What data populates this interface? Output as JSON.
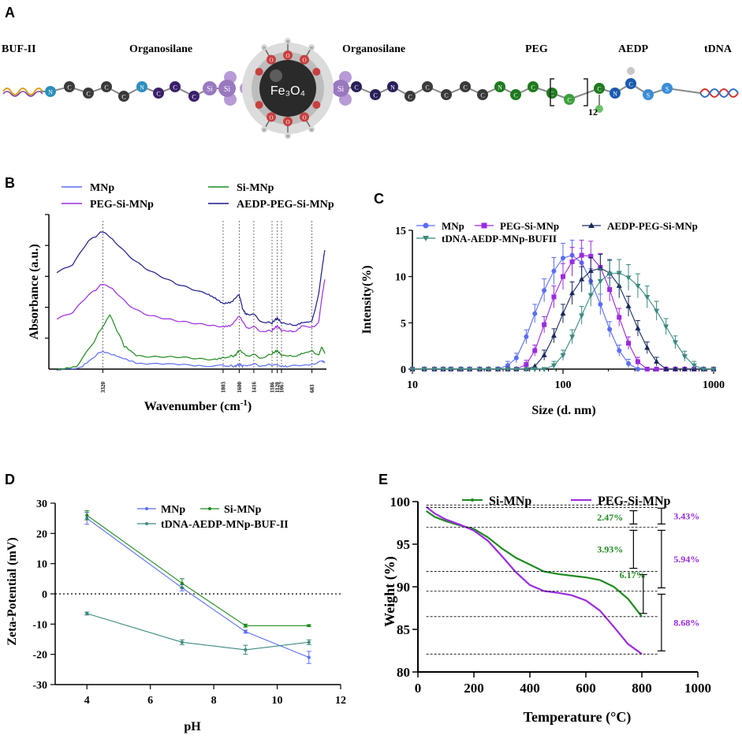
{
  "panel_labels": [
    "A",
    "B",
    "C",
    "D",
    "E"
  ],
  "schematic": {
    "labels": [
      "BUF-II",
      "Organosilane",
      "Organosilane",
      "PEG",
      "AEDP",
      "tDNA"
    ],
    "label_colors": [
      "#f28c28",
      "#8a5db8",
      "#8a5db8",
      "#5bb54a",
      "#3a8ed8",
      "#d83030"
    ],
    "core_label": "Fe₃O₄",
    "peg_repeat": "12",
    "left_chain": [
      "N",
      "C",
      "C",
      "C",
      "C",
      "N",
      "C",
      "C",
      "C",
      "Si"
    ],
    "right_chain": [
      "Si",
      "C",
      "C",
      "C",
      "N",
      "C",
      "C",
      "C",
      "C",
      "N",
      "C",
      "C",
      "C",
      "C",
      "N",
      "C",
      "S",
      "S"
    ],
    "core_oxygen": "O",
    "core_hydrogen": "H"
  },
  "chart_data": [
    {
      "id": "B",
      "type": "line",
      "title": "",
      "xlabel": "Wavenumber (cm-1)",
      "ylabel": "Absorbance (a.u.)",
      "x_reversed": true,
      "xlim": [
        4000,
        500
      ],
      "ylim": [
        0,
        1
      ],
      "marked_wavenumbers": [
        "3320",
        "1803",
        "1600",
        "1416",
        "1186",
        "1120",
        "1067",
        "683"
      ],
      "marked_values": [
        3320,
        1803,
        1600,
        1416,
        1186,
        1120,
        1067,
        683
      ],
      "legend": [
        "MNp",
        "Si-MNp",
        "PEG-Si-MNp",
        "AEDP-PEG-Si-MNp"
      ],
      "series": [
        {
          "name": "MNp",
          "color": "#5b6ef5",
          "x": [
            3900,
            3600,
            3450,
            3320,
            3150,
            2900,
            2500,
            2100,
            1803,
            1650,
            1600,
            1550,
            1416,
            1300,
            1186,
            1100,
            1000,
            800,
            683,
            560,
            520
          ],
          "y": [
            0.0,
            0.01,
            0.07,
            0.12,
            0.08,
            0.04,
            0.03,
            0.025,
            0.02,
            0.02,
            0.03,
            0.02,
            0.03,
            0.02,
            0.03,
            0.025,
            0.02,
            0.025,
            0.03,
            0.05,
            0.04
          ]
        },
        {
          "name": "Si-MNp",
          "color": "#1f8a1f",
          "x": [
            3900,
            3650,
            3450,
            3320,
            3230,
            3050,
            2900,
            2700,
            2500,
            2300,
            2100,
            1900,
            1803,
            1650,
            1600,
            1500,
            1416,
            1300,
            1186,
            1120,
            1067,
            900,
            800,
            683,
            600,
            560,
            520
          ],
          "y": [
            0.0,
            0.02,
            0.16,
            0.28,
            0.35,
            0.15,
            0.09,
            0.08,
            0.075,
            0.075,
            0.07,
            0.065,
            0.07,
            0.09,
            0.12,
            0.08,
            0.09,
            0.07,
            0.1,
            0.12,
            0.09,
            0.08,
            0.1,
            0.12,
            0.09,
            0.14,
            0.1
          ]
        },
        {
          "name": "PEG-Si-MNp",
          "color": "#9b2be0",
          "x": [
            3900,
            3700,
            3500,
            3320,
            3200,
            3000,
            2800,
            2600,
            2400,
            2200,
            2000,
            1803,
            1700,
            1600,
            1500,
            1416,
            1300,
            1186,
            1120,
            1067,
            900,
            800,
            683,
            600,
            560,
            520
          ],
          "y": [
            0.33,
            0.37,
            0.48,
            0.55,
            0.52,
            0.42,
            0.36,
            0.33,
            0.31,
            0.3,
            0.29,
            0.27,
            0.28,
            0.34,
            0.26,
            0.27,
            0.24,
            0.25,
            0.28,
            0.25,
            0.24,
            0.28,
            0.27,
            0.3,
            0.45,
            0.58
          ]
        },
        {
          "name": "AEDP-PEG-Si-MNp",
          "color": "#1a1a8c",
          "x": [
            3900,
            3700,
            3500,
            3320,
            3200,
            3000,
            2800,
            2600,
            2400,
            2200,
            2000,
            1900,
            1803,
            1700,
            1600,
            1550,
            1500,
            1416,
            1300,
            1186,
            1120,
            1067,
            900,
            800,
            683,
            600,
            560,
            520
          ],
          "y": [
            0.63,
            0.68,
            0.83,
            0.89,
            0.84,
            0.74,
            0.66,
            0.6,
            0.55,
            0.52,
            0.49,
            0.46,
            0.42,
            0.43,
            0.48,
            0.38,
            0.35,
            0.35,
            0.3,
            0.3,
            0.33,
            0.3,
            0.28,
            0.3,
            0.31,
            0.48,
            0.63,
            0.77
          ]
        }
      ]
    },
    {
      "id": "C",
      "type": "line",
      "title": "",
      "xlabel": "Size (d. nm)",
      "ylabel": "Intensity(%)",
      "xscale": "log",
      "xlim": [
        10,
        1000
      ],
      "ylim": [
        0,
        15
      ],
      "xticks": [
        10,
        100,
        1000
      ],
      "yticks": [
        0,
        5,
        10,
        15
      ],
      "xtick_labels": [
        "10",
        "100",
        "1000"
      ],
      "ytick_labels": [
        "0",
        "5",
        "10",
        "15"
      ],
      "legend": [
        "MNp",
        "PEG-Si-MNp",
        "AEDP-PEG-Si-MNp",
        "tDNA-AEDP-MNp-BUFII"
      ],
      "series": [
        {
          "name": "MNp",
          "color": "#5b6ef5",
          "marker": "circle",
          "x": [
            10,
            12,
            14,
            16,
            18,
            21,
            24,
            28,
            32,
            37,
            43,
            49,
            57,
            65,
            75,
            87,
            100,
            115,
            133,
            153,
            177,
            204,
            236,
            272,
            314,
            362,
            418,
            483,
            557,
            643,
            742,
            857,
            1000
          ],
          "y": [
            0,
            0,
            0,
            0,
            0,
            0,
            0,
            0,
            0,
            0,
            0.4,
            1.2,
            3.5,
            6,
            8.5,
            10.6,
            12.0,
            12.3,
            11.5,
            9.5,
            7.0,
            4.3,
            2.0,
            0.6,
            0,
            0,
            0,
            0,
            0,
            0,
            0,
            0,
            0
          ]
        },
        {
          "name": "PEG-Si-MNp",
          "color": "#9b2be0",
          "marker": "square",
          "x": [
            10,
            12,
            14,
            16,
            18,
            21,
            24,
            28,
            32,
            37,
            43,
            49,
            57,
            65,
            75,
            87,
            100,
            115,
            133,
            153,
            177,
            204,
            236,
            272,
            314,
            362,
            418,
            483,
            557,
            643,
            742,
            857,
            1000
          ],
          "y": [
            0,
            0,
            0,
            0,
            0,
            0,
            0,
            0,
            0,
            0,
            0,
            0,
            0.5,
            2.0,
            4.8,
            7.8,
            10.0,
            11.6,
            12.3,
            12.2,
            11.0,
            8.6,
            5.6,
            2.8,
            0.8,
            0,
            0,
            0,
            0,
            0,
            0,
            0,
            0
          ]
        },
        {
          "name": "AEDP-PEG-Si-MNp",
          "color": "#1a2a5e",
          "marker": "triangle",
          "x": [
            10,
            12,
            14,
            16,
            18,
            21,
            24,
            28,
            32,
            37,
            43,
            49,
            57,
            65,
            75,
            87,
            100,
            115,
            133,
            153,
            177,
            204,
            236,
            272,
            314,
            362,
            418,
            483,
            557,
            643,
            742,
            857,
            1000
          ],
          "y": [
            0,
            0,
            0,
            0,
            0,
            0,
            0,
            0,
            0,
            0,
            0,
            0,
            0,
            0.3,
            1.5,
            3.6,
            6.0,
            8.2,
            9.7,
            10.6,
            10.9,
            10.4,
            9.0,
            6.8,
            4.4,
            2.3,
            0.8,
            0,
            0,
            0,
            0,
            0,
            0
          ]
        },
        {
          "name": "tDNA-AEDP-MNp-BUFII",
          "color": "#3a8a80",
          "marker": "triangle-down",
          "x": [
            10,
            12,
            14,
            16,
            18,
            21,
            24,
            28,
            32,
            37,
            43,
            49,
            57,
            65,
            75,
            87,
            100,
            115,
            133,
            153,
            177,
            204,
            236,
            272,
            314,
            362,
            418,
            483,
            557,
            643,
            742,
            857,
            1000
          ],
          "y": [
            0,
            0,
            0,
            0,
            0,
            0,
            0,
            0,
            0,
            0,
            0,
            0,
            0,
            0,
            0,
            0.4,
            1.5,
            3.5,
            5.8,
            8.0,
            9.5,
            10.3,
            10.4,
            9.9,
            9.0,
            7.8,
            6.3,
            4.6,
            2.9,
            1.4,
            0.4,
            0,
            0
          ]
        }
      ]
    },
    {
      "id": "D",
      "type": "line",
      "title": "",
      "xlabel": "pH",
      "ylabel": "Zeta-Potential (mV)",
      "xlim": [
        3,
        12
      ],
      "ylim": [
        -30,
        30
      ],
      "xticks": [
        4,
        6,
        8,
        10,
        12
      ],
      "yticks": [
        -30,
        -20,
        -10,
        0,
        10,
        20,
        30
      ],
      "xtick_labels": [
        "4",
        "6",
        "8",
        "10",
        "12"
      ],
      "ytick_labels": [
        "-30",
        "-20",
        "-10",
        "0",
        "10",
        "20",
        "30"
      ],
      "zero_line": true,
      "legend": [
        "MNp",
        "Si-MNp",
        "tDNA-AEDP-MNp-BUF-II"
      ],
      "series": [
        {
          "name": "MNp",
          "color": "#5b6ef5",
          "x": [
            4,
            7,
            9,
            11
          ],
          "y": [
            25,
            2,
            -12.5,
            -21
          ],
          "err": [
            2,
            1,
            0.5,
            2
          ]
        },
        {
          "name": "Si-MNp",
          "color": "#1f8a1f",
          "x": [
            4,
            7,
            9,
            11
          ],
          "y": [
            26,
            3.5,
            -10.5,
            -10.5
          ],
          "err": [
            1.5,
            1.5,
            0.5,
            0.3
          ]
        },
        {
          "name": "tDNA-AEDP-MNp-BUF-II",
          "color": "#3a8a80",
          "x": [
            4,
            7,
            9,
            11
          ],
          "y": [
            -6.5,
            -16,
            -18.5,
            -16
          ],
          "err": [
            0.5,
            0.8,
            1.5,
            0.8
          ]
        }
      ]
    },
    {
      "id": "E",
      "type": "line",
      "title": "",
      "xlabel": "Temperature (°C)",
      "ylabel": "Weight (%)",
      "xlim": [
        0,
        1000
      ],
      "ylim": [
        80,
        100
      ],
      "xticks": [
        0,
        200,
        400,
        600,
        800,
        1000
      ],
      "yticks": [
        80,
        85,
        90,
        95,
        100
      ],
      "xtick_labels": [
        "0",
        "200",
        "400",
        "600",
        "800",
        "1000"
      ],
      "ytick_labels": [
        "80",
        "85",
        "90",
        "95",
        "100"
      ],
      "legend": [
        "Si-MNp",
        "PEG-Si-MNp"
      ],
      "series": [
        {
          "name": "Si-MNp",
          "color": "#1f8a1f",
          "x": [
            30,
            60,
            100,
            150,
            200,
            250,
            300,
            350,
            400,
            450,
            500,
            550,
            600,
            650,
            700,
            750,
            800
          ],
          "y": [
            98.9,
            98.2,
            97.7,
            97.2,
            96.8,
            95.8,
            94.5,
            93.4,
            92.6,
            91.8,
            91.5,
            91.3,
            91.1,
            90.8,
            90.0,
            88.6,
            86.5
          ]
        },
        {
          "name": "PEG-Si-MNp",
          "color": "#9b2be0",
          "x": [
            30,
            60,
            100,
            150,
            200,
            250,
            300,
            350,
            400,
            450,
            500,
            550,
            600,
            650,
            700,
            750,
            800
          ],
          "y": [
            99.4,
            98.6,
            97.9,
            97.3,
            96.6,
            95.4,
            93.6,
            91.7,
            90.2,
            89.5,
            89.3,
            89.0,
            88.4,
            87.2,
            85.3,
            83.3,
            82.1
          ]
        }
      ],
      "annotations": [
        {
          "text": "2.47%",
          "series": "Si-MNp",
          "from": 99.3,
          "to": 97.0
        },
        {
          "text": "3.93%",
          "series": "Si-MNp",
          "from": 97.0,
          "to": 91.8
        },
        {
          "text": "6.17%",
          "series": "Si-MNp",
          "from": 91.8,
          "to": 86.5
        },
        {
          "text": "3.43%",
          "series": "PEG-Si-MNp",
          "from": 99.6,
          "to": 97.0
        },
        {
          "text": "5.94%",
          "series": "PEG-Si-MNp",
          "from": 97.0,
          "to": 89.5
        },
        {
          "text": "8.68%",
          "series": "PEG-Si-MNp",
          "from": 89.5,
          "to": 82.1
        }
      ]
    }
  ]
}
